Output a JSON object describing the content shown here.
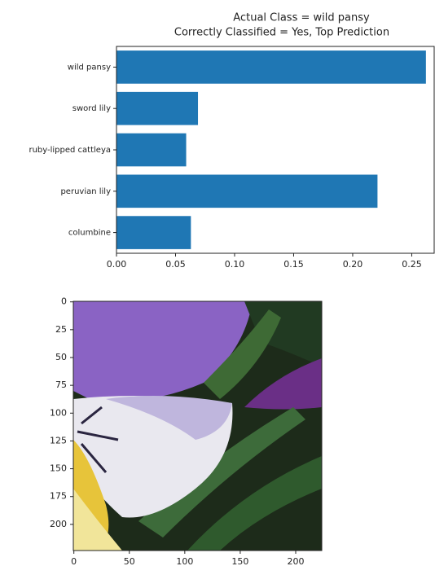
{
  "chart_data": [
    {
      "type": "barh",
      "title": "Actual Class = wild pansy",
      "subtitle": "Correctly Classified = Yes, Top Prediction",
      "categories": [
        "wild pansy",
        "sword lily",
        "ruby-lipped cattleya",
        "peruvian lily",
        "columbine"
      ],
      "values": [
        0.262,
        0.069,
        0.059,
        0.221,
        0.063
      ],
      "color": "#1f77b4",
      "xlim": [
        0,
        0.269
      ],
      "xticks": [
        {
          "value": 0,
          "label": "0.00"
        },
        {
          "value": 0.05,
          "label": "0.05"
        },
        {
          "value": 0.1,
          "label": "0.10"
        },
        {
          "value": 0.15,
          "label": "0.15"
        },
        {
          "value": 0.2,
          "label": "0.20"
        },
        {
          "value": 0.25,
          "label": "0.25"
        }
      ]
    },
    {
      "type": "image",
      "xlim": [
        -0.5,
        223.5
      ],
      "ylim": [
        223.5,
        -0.5
      ],
      "xticks": [
        0,
        50,
        100,
        150,
        200
      ],
      "yticks": [
        0,
        25,
        50,
        75,
        100,
        125,
        150,
        175,
        200
      ]
    }
  ]
}
